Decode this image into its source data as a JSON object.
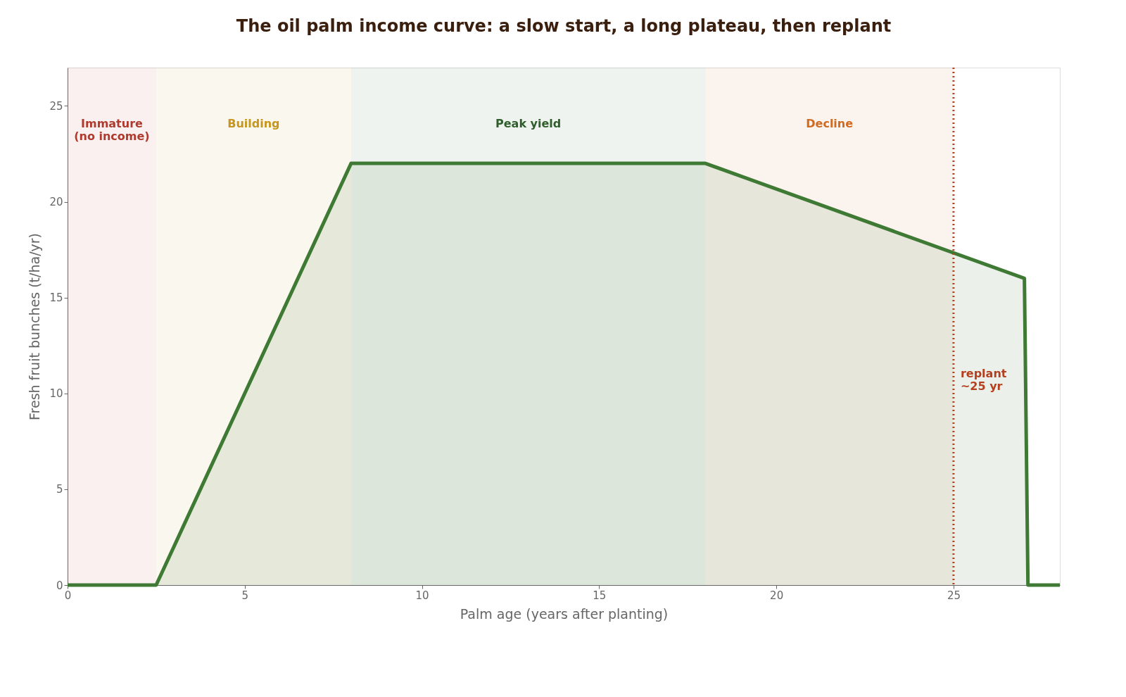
{
  "chart_data": {
    "type": "area",
    "title": "The oil palm income curve: a slow start, a long plateau, then replant",
    "xlabel": "Palm age (years after planting)",
    "ylabel": "Fresh fruit bunches (t/ha/yr)",
    "series": [
      {
        "color": "#3f7a35",
        "x": [
          0,
          2.5,
          8,
          18,
          27,
          27.1,
          28
        ],
        "values": [
          0,
          0,
          22,
          22,
          16,
          0,
          0
        ]
      }
    ],
    "xlim": [
      0,
      28
    ],
    "xticks": [
      0,
      5,
      10,
      15,
      20,
      25
    ],
    "ylim": [
      0,
      27
    ],
    "yticks": [
      0,
      5,
      10,
      15,
      20,
      25
    ],
    "bands": [
      {
        "axis": "x",
        "from": 0,
        "to": 2.5,
        "label": "Immature\n(no income)",
        "color": "#b03a2e"
      },
      {
        "axis": "x",
        "from": 2.5,
        "to": 8,
        "label": "Building",
        "color": "#c8961e"
      },
      {
        "axis": "x",
        "from": 8,
        "to": 18,
        "label": "Peak yield",
        "color": "#2e5e2a"
      },
      {
        "axis": "x",
        "from": 18,
        "to": 25,
        "label": "Decline",
        "color": "#d06a20"
      }
    ],
    "ref_lines": [
      {
        "axis": "x",
        "value": 25,
        "label": "replant\n~25 yr",
        "color": "#b5401f",
        "line_style": "dotted"
      }
    ],
    "grid": false
  }
}
